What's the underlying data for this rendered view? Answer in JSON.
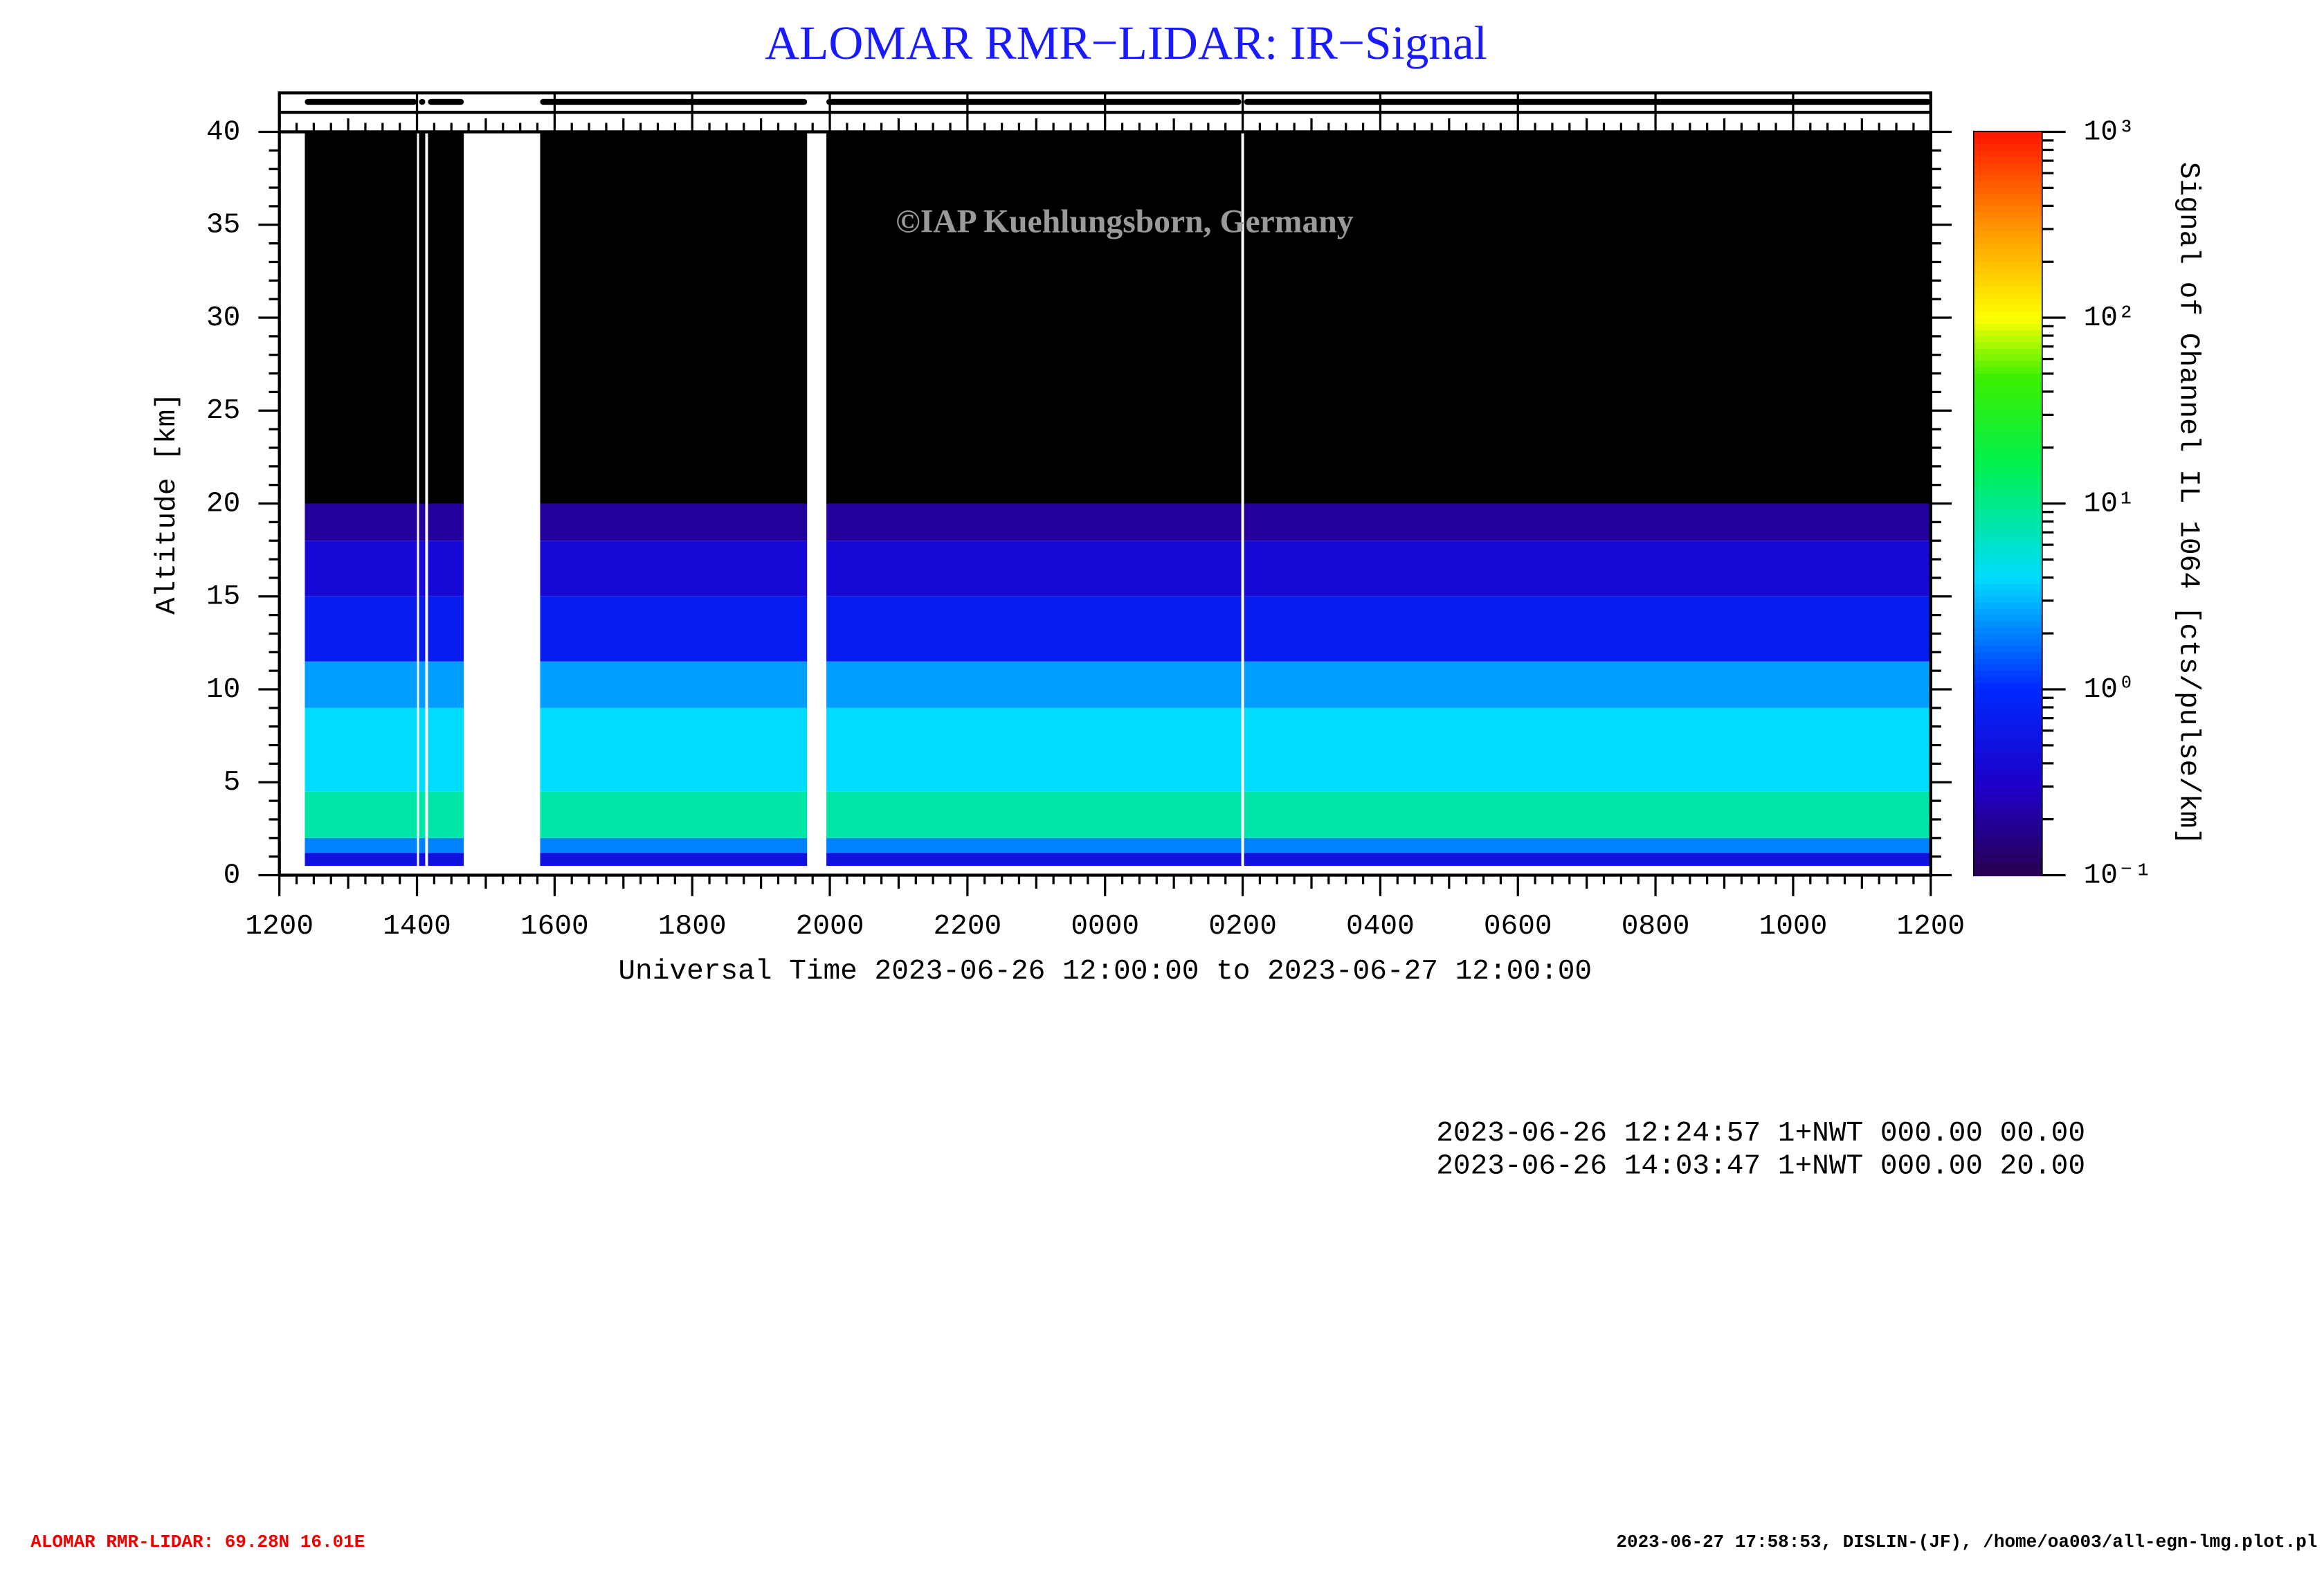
{
  "chart_data": {
    "type": "heatmap",
    "title": "ALOMAR RMR−LIDAR: IR−Signal",
    "x_label": "Universal Time 2023-06-26 12:00:00 to 2023-06-27 12:00:00",
    "y_label": "Altitude [km]",
    "colorbar_label": "Signal of Channel IL 1064 [cts/pulse/km]",
    "annotation": "©IAP Kuehlungsborn, Germany",
    "xlim": [
      0,
      24
    ],
    "xticks": [
      {
        "value": 0,
        "label": "1200"
      },
      {
        "value": 2,
        "label": "1400"
      },
      {
        "value": 4,
        "label": "1600"
      },
      {
        "value": 6,
        "label": "1800"
      },
      {
        "value": 8,
        "label": "2000"
      },
      {
        "value": 10,
        "label": "2200"
      },
      {
        "value": 12,
        "label": "0000"
      },
      {
        "value": 14,
        "label": "0200"
      },
      {
        "value": 16,
        "label": "0400"
      },
      {
        "value": 18,
        "label": "0600"
      },
      {
        "value": 20,
        "label": "0800"
      },
      {
        "value": 22,
        "label": "1000"
      },
      {
        "value": 24,
        "label": "1200"
      }
    ],
    "ylim": [
      0,
      40
    ],
    "yticks": [
      0,
      5,
      10,
      15,
      20,
      25,
      30,
      35,
      40
    ],
    "clim": [
      0.1,
      1000
    ],
    "log_color_scale": true,
    "cticks": [
      {
        "value": 0.1,
        "label": "10⁻¹"
      },
      {
        "value": 1,
        "label": "10⁰"
      },
      {
        "value": 10,
        "label": "10¹"
      },
      {
        "value": 100,
        "label": "10²"
      },
      {
        "value": 1000,
        "label": "10³"
      }
    ],
    "data_periods": [
      [
        0.37,
        2.0
      ],
      [
        2.03,
        2.12
      ],
      [
        2.16,
        2.68
      ],
      [
        3.79,
        7.67
      ],
      [
        7.95,
        13.98
      ],
      [
        14.02,
        24
      ]
    ],
    "altitude_bins": [
      0.5,
      1.2,
      2,
      4.5,
      9,
      11.5,
      15,
      18,
      20,
      40
    ],
    "values": [
      0.5,
      2,
      8,
      4,
      2.5,
      0.7,
      0.4,
      0.2,
      0.05
    ],
    "log_lines": [
      "2023-06-26 12:24:57 1+NWT 000.00 00.00",
      "2023-06-26 14:03:47 1+NWT 000.00 20.00"
    ],
    "footer_left": "ALOMAR RMR-LIDAR: 69.28N 16.01E",
    "footer_right": "2023-06-27 17:58:53, DISLIN-(JF), /home/oa003/all-egn-lmg.plot.pl"
  }
}
